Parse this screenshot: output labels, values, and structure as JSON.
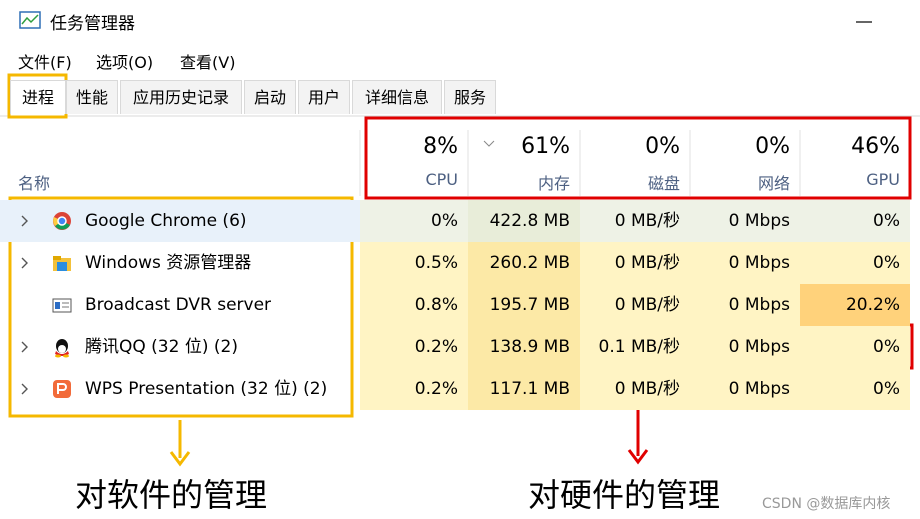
{
  "window_title": "任务管理器",
  "menu": [
    "文件(F)",
    "选项(O)",
    "查看(V)"
  ],
  "tabs": [
    "进程",
    "性能",
    "应用历史记录",
    "启动",
    "用户",
    "详细信息",
    "服务"
  ],
  "table": {
    "name_header": "名称",
    "columns": [
      {
        "percent": "8%",
        "label": "CPU"
      },
      {
        "percent": "61%",
        "label": "内存"
      },
      {
        "percent": "0%",
        "label": "磁盘"
      },
      {
        "percent": "0%",
        "label": "网络"
      },
      {
        "percent": "46%",
        "label": "GPU"
      }
    ],
    "rows": [
      {
        "name": "Google Chrome (6)",
        "cells": [
          "0%",
          "422.8 MB",
          "0 MB/秒",
          "0 Mbps",
          "0%"
        ]
      },
      {
        "name": "Windows 资源管理器",
        "cells": [
          "0.5%",
          "260.2 MB",
          "0 MB/秒",
          "0 Mbps",
          "0%"
        ]
      },
      {
        "name": "Broadcast DVR server",
        "cells": [
          "0.8%",
          "195.7 MB",
          "0 MB/秒",
          "0 Mbps",
          "20.2%"
        ]
      },
      {
        "name": "腾讯QQ (32 位) (2)",
        "cells": [
          "0.2%",
          "138.9 MB",
          "0.1 MB/秒",
          "0 Mbps",
          "0%"
        ]
      },
      {
        "name": "WPS Presentation (32 位) (2)",
        "cells": [
          "0.2%",
          "117.1 MB",
          "0 MB/秒",
          "0 Mbps",
          "0%"
        ]
      }
    ]
  },
  "annotations": {
    "software": "对软件的管理",
    "hardware": "对硬件的管理"
  },
  "watermark": "CSDN @数据库内核"
}
